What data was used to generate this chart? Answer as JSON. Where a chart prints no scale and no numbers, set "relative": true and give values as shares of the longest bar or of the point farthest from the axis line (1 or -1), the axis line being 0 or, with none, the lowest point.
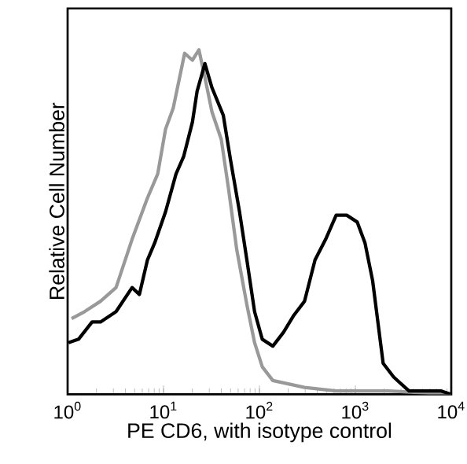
{
  "chart_data": {
    "type": "line",
    "xlabel": "PE CD6,  with isotype control",
    "ylabel": "Relative Cell Number",
    "relative": true,
    "log": "x",
    "tick_labels": "x",
    "marker": "none",
    "line_style": "solid",
    "xlim": [
      1,
      10000
    ],
    "xticks": [
      {
        "value": 1,
        "label": "10$^{0}$"
      },
      {
        "value": 10,
        "label": "10$^{1}$"
      },
      {
        "value": 100,
        "label": "10$^{2}$"
      },
      {
        "value": 1000,
        "label": "10$^{3}$"
      },
      {
        "value": 10000,
        "label": "10$^{4}$"
      }
    ],
    "series": [
      {
        "color": "#999999",
        "x": [
          1.1,
          1.5,
          2.2,
          3.2,
          4.7,
          6.8,
          8.7,
          10.5,
          12.6,
          15.5,
          16.6,
          20,
          23.4,
          27,
          32,
          40,
          48,
          58,
          74,
          89,
          107,
          138,
          204,
          295,
          631,
          2190,
          10000
        ],
        "values": [
          0.22,
          0.24,
          0.27,
          0.31,
          0.45,
          0.57,
          0.64,
          0.77,
          0.83,
          0.95,
          0.99,
          0.97,
          1,
          0.92,
          0.82,
          0.74,
          0.59,
          0.42,
          0.26,
          0.15,
          0.08,
          0.04,
          0.03,
          0.02,
          0.01,
          0.01,
          0.0
        ]
      },
      {
        "color": "#000000",
        "x": [
          1.02,
          1.3,
          1.8,
          2.2,
          3.2,
          4.7,
          5.6,
          6.8,
          8.1,
          10.5,
          13.5,
          16.2,
          20,
          22.4,
          27,
          32,
          42,
          50,
          62,
          74,
          89,
          107,
          138,
          178,
          229,
          295,
          380,
          490,
          631,
          813,
          1047,
          1259,
          1514,
          1950,
          2512,
          3631,
          5370,
          7762,
          10000
        ],
        "values": [
          0.15,
          0.16,
          0.21,
          0.21,
          0.24,
          0.31,
          0.29,
          0.39,
          0.44,
          0.53,
          0.64,
          0.69,
          0.79,
          0.88,
          0.96,
          0.89,
          0.81,
          0.68,
          0.53,
          0.39,
          0.24,
          0.16,
          0.14,
          0.18,
          0.23,
          0.27,
          0.39,
          0.45,
          0.52,
          0.52,
          0.5,
          0.44,
          0.33,
          0.09,
          0.05,
          0.01,
          0.01,
          0.01,
          0.0
        ]
      }
    ]
  }
}
